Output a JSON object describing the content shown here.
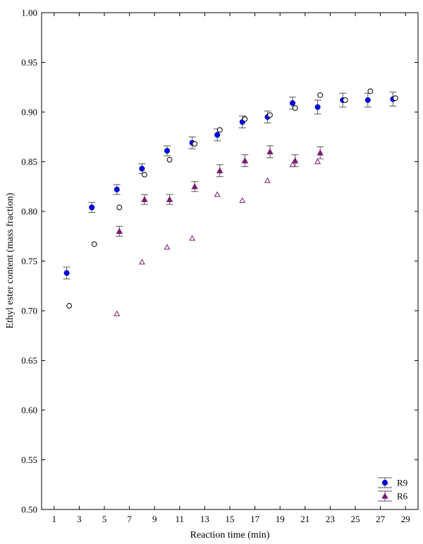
{
  "chart_data": {
    "type": "scatter",
    "title": "",
    "xlabel": "Reaction time (min)",
    "ylabel": "Ethyl ester content (mass fraction)",
    "xlim": [
      0,
      30
    ],
    "ylim": [
      0.5,
      1.0
    ],
    "xticks": [
      1,
      3,
      5,
      7,
      9,
      11,
      13,
      15,
      17,
      19,
      21,
      23,
      25,
      27,
      29
    ],
    "yticks": [
      0.5,
      0.55,
      0.6,
      0.65,
      0.7,
      0.75,
      0.8,
      0.85,
      0.9,
      0.95,
      1.0
    ],
    "grid": false,
    "legend_position": "bottom-right",
    "series": [
      {
        "name": "R9",
        "color": "#0000ff",
        "marker": "filled-circle",
        "error_bars": true,
        "points": [
          {
            "x": 2,
            "y": 0.738,
            "err": 0.006
          },
          {
            "x": 4,
            "y": 0.804,
            "err": 0.005
          },
          {
            "x": 6,
            "y": 0.822,
            "err": 0.005
          },
          {
            "x": 8,
            "y": 0.843,
            "err": 0.005
          },
          {
            "x": 10,
            "y": 0.861,
            "err": 0.005
          },
          {
            "x": 12,
            "y": 0.869,
            "err": 0.006
          },
          {
            "x": 14,
            "y": 0.877,
            "err": 0.006
          },
          {
            "x": 16,
            "y": 0.89,
            "err": 0.006
          },
          {
            "x": 18,
            "y": 0.895,
            "err": 0.006
          },
          {
            "x": 20,
            "y": 0.909,
            "err": 0.006
          },
          {
            "x": 22,
            "y": 0.905,
            "err": 0.007
          },
          {
            "x": 24,
            "y": 0.912,
            "err": 0.007
          },
          {
            "x": 26,
            "y": 0.912,
            "err": 0.007
          },
          {
            "x": 28,
            "y": 0.913,
            "err": 0.007
          }
        ]
      },
      {
        "name": "R6",
        "color": "#7a1a6e",
        "marker": "filled-triangle",
        "error_bars": true,
        "points": [
          {
            "x": 6.2,
            "y": 0.78,
            "err": 0.005
          },
          {
            "x": 8.2,
            "y": 0.812,
            "err": 0.005
          },
          {
            "x": 10.2,
            "y": 0.812,
            "err": 0.005
          },
          {
            "x": 12.2,
            "y": 0.825,
            "err": 0.005
          },
          {
            "x": 14.2,
            "y": 0.841,
            "err": 0.006
          },
          {
            "x": 16.2,
            "y": 0.851,
            "err": 0.006
          },
          {
            "x": 18.2,
            "y": 0.86,
            "err": 0.006
          },
          {
            "x": 20.2,
            "y": 0.851,
            "err": 0.006
          },
          {
            "x": 22.2,
            "y": 0.859,
            "err": 0.006
          }
        ]
      },
      {
        "name": "",
        "color": "#000000",
        "marker": "open-circle",
        "error_bars": false,
        "points": [
          {
            "x": 2.2,
            "y": 0.705
          },
          {
            "x": 4.2,
            "y": 0.767
          },
          {
            "x": 6.2,
            "y": 0.804
          },
          {
            "x": 8.2,
            "y": 0.837
          },
          {
            "x": 10.2,
            "y": 0.852
          },
          {
            "x": 12.2,
            "y": 0.868
          },
          {
            "x": 14.2,
            "y": 0.882
          },
          {
            "x": 16.2,
            "y": 0.893
          },
          {
            "x": 18.2,
            "y": 0.897
          },
          {
            "x": 20.2,
            "y": 0.904
          },
          {
            "x": 22.2,
            "y": 0.917
          },
          {
            "x": 24.2,
            "y": 0.912
          },
          {
            "x": 26.2,
            "y": 0.921
          },
          {
            "x": 28.2,
            "y": 0.914
          }
        ]
      },
      {
        "name": "",
        "color": "#7a1a6e",
        "marker": "open-triangle",
        "error_bars": false,
        "points": [
          {
            "x": 6,
            "y": 0.697
          },
          {
            "x": 8,
            "y": 0.749
          },
          {
            "x": 10,
            "y": 0.764
          },
          {
            "x": 12,
            "y": 0.773
          },
          {
            "x": 14,
            "y": 0.817
          },
          {
            "x": 16,
            "y": 0.811
          },
          {
            "x": 18,
            "y": 0.831
          },
          {
            "x": 20,
            "y": 0.847
          },
          {
            "x": 22,
            "y": 0.85
          }
        ]
      }
    ]
  }
}
